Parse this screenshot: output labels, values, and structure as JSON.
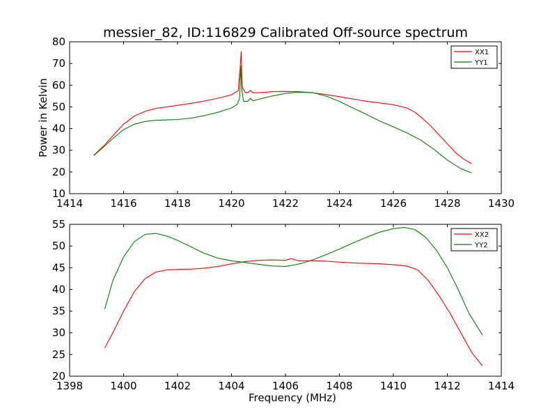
{
  "figure": {
    "title": "messier_82, ID:116829 Calibrated Off-source spectrum"
  },
  "chart_data": [
    {
      "type": "line",
      "title": "messier_82, ID:116829 Calibrated Off-source spectrum",
      "xlabel": "",
      "ylabel": "Power in Kelvin",
      "xlim": [
        1414,
        1430
      ],
      "ylim": [
        10,
        80
      ],
      "xticks": [
        1414,
        1416,
        1418,
        1420,
        1422,
        1424,
        1426,
        1428,
        1430
      ],
      "yticks": [
        10,
        20,
        30,
        40,
        50,
        60,
        70,
        80
      ],
      "legend_position": "top-right",
      "grid": false,
      "series": [
        {
          "name": "XX1",
          "color": "#ff0000",
          "x": [
            1414.9,
            1415.3,
            1415.7,
            1416.0,
            1416.4,
            1416.8,
            1417.2,
            1417.6,
            1418.0,
            1418.5,
            1419.0,
            1419.5,
            1420.0,
            1420.25,
            1420.32,
            1420.36,
            1420.4,
            1420.5,
            1420.6,
            1420.7,
            1420.8,
            1421.0,
            1421.5,
            1422.0,
            1422.5,
            1423.0,
            1423.5,
            1424.0,
            1424.5,
            1425.0,
            1425.5,
            1426.0,
            1426.5,
            1426.8,
            1427.1,
            1427.4,
            1427.7,
            1428.0,
            1428.3,
            1428.6,
            1428.9
          ],
          "y": [
            27.8,
            32.5,
            38.0,
            42.0,
            45.8,
            48.0,
            49.3,
            50.0,
            50.7,
            51.6,
            52.7,
            54.0,
            55.6,
            57.5,
            68.0,
            75.5,
            59.0,
            56.8,
            56.5,
            57.6,
            56.5,
            56.5,
            57.0,
            57.1,
            57.0,
            56.5,
            55.7,
            54.7,
            53.6,
            52.6,
            51.8,
            51.0,
            49.5,
            47.5,
            44.5,
            41.0,
            37.0,
            33.0,
            29.0,
            26.0,
            23.8
          ]
        },
        {
          "name": "YY1",
          "color": "#008000",
          "x": [
            1414.9,
            1415.3,
            1415.7,
            1416.0,
            1416.4,
            1416.8,
            1417.2,
            1417.6,
            1418.0,
            1418.5,
            1419.0,
            1419.5,
            1420.0,
            1420.2,
            1420.3,
            1420.34,
            1420.38,
            1420.45,
            1420.6,
            1420.7,
            1420.8,
            1421.0,
            1421.5,
            1422.0,
            1422.5,
            1423.0,
            1423.5,
            1424.0,
            1424.5,
            1425.0,
            1425.5,
            1426.0,
            1426.5,
            1427.0,
            1427.5,
            1428.0,
            1428.5,
            1428.9
          ],
          "y": [
            27.6,
            32.0,
            36.5,
            39.5,
            42.0,
            43.3,
            43.8,
            44.0,
            44.2,
            44.8,
            46.0,
            47.5,
            49.5,
            51.0,
            54.0,
            69.0,
            58.0,
            52.5,
            52.5,
            54.0,
            52.8,
            53.5,
            55.0,
            56.2,
            56.8,
            56.6,
            55.0,
            52.5,
            49.5,
            46.5,
            43.5,
            40.8,
            38.0,
            34.8,
            30.5,
            25.5,
            21.5,
            19.6
          ]
        }
      ]
    },
    {
      "type": "line",
      "title": "",
      "xlabel": "Frequency (MHz)",
      "ylabel": "",
      "xlim": [
        1398,
        1414
      ],
      "ylim": [
        20,
        55
      ],
      "xticks": [
        1398,
        1400,
        1402,
        1404,
        1406,
        1408,
        1410,
        1412,
        1414
      ],
      "yticks": [
        20,
        25,
        30,
        35,
        40,
        45,
        50,
        55
      ],
      "legend_position": "top-right",
      "grid": false,
      "series": [
        {
          "name": "XX2",
          "color": "#ff0000",
          "x": [
            1399.3,
            1399.6,
            1400.0,
            1400.4,
            1400.8,
            1401.2,
            1401.6,
            1402.0,
            1402.5,
            1403.0,
            1403.5,
            1404.0,
            1404.5,
            1405.0,
            1405.5,
            1406.0,
            1406.2,
            1406.5,
            1407.0,
            1407.5,
            1408.0,
            1408.5,
            1409.0,
            1409.5,
            1410.0,
            1410.5,
            1410.9,
            1411.3,
            1411.7,
            1412.1,
            1412.5,
            1412.9,
            1413.3
          ],
          "y": [
            26.5,
            30.0,
            35.0,
            39.5,
            42.5,
            44.0,
            44.5,
            44.6,
            44.7,
            44.9,
            45.3,
            45.9,
            46.4,
            46.7,
            46.8,
            46.7,
            47.1,
            46.6,
            46.6,
            46.5,
            46.3,
            46.1,
            46.0,
            45.9,
            45.7,
            45.4,
            44.5,
            42.0,
            38.5,
            34.5,
            30.0,
            25.5,
            22.4
          ]
        },
        {
          "name": "YY2",
          "color": "#008000",
          "x": [
            1399.3,
            1399.6,
            1400.0,
            1400.4,
            1400.8,
            1401.2,
            1401.6,
            1402.0,
            1402.5,
            1403.0,
            1403.5,
            1404.0,
            1404.5,
            1405.0,
            1405.5,
            1406.0,
            1406.3,
            1406.6,
            1407.0,
            1407.5,
            1408.0,
            1408.5,
            1409.0,
            1409.5,
            1410.0,
            1410.4,
            1410.8,
            1411.2,
            1411.6,
            1412.0,
            1412.4,
            1412.8,
            1413.3
          ],
          "y": [
            35.5,
            42.0,
            47.5,
            51.0,
            52.7,
            52.9,
            52.3,
            51.3,
            49.8,
            48.3,
            47.2,
            46.6,
            46.2,
            45.8,
            45.4,
            45.3,
            45.6,
            46.0,
            46.8,
            48.0,
            49.3,
            50.7,
            52.0,
            53.2,
            54.0,
            54.3,
            53.8,
            52.0,
            49.0,
            45.0,
            40.0,
            34.5,
            29.5
          ]
        }
      ]
    }
  ]
}
